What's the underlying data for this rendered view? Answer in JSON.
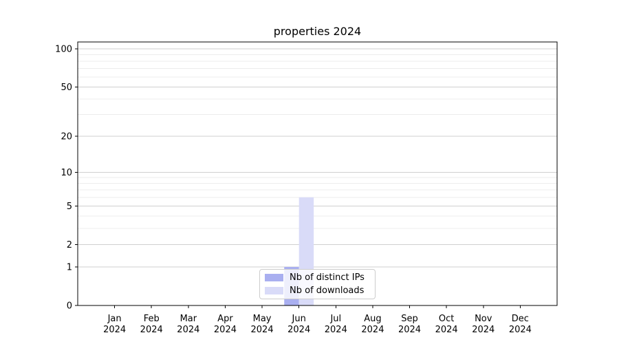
{
  "chart_data": {
    "type": "bar",
    "title": "properties 2024",
    "categories": [
      "Jan",
      "Feb",
      "Mar",
      "Apr",
      "May",
      "Jun",
      "Jul",
      "Aug",
      "Sep",
      "Oct",
      "Nov",
      "Dec"
    ],
    "category_year": "2024",
    "series": [
      {
        "name": "Nb of distinct IPs",
        "color": "#a9aff0",
        "values": [
          0,
          0,
          0,
          0,
          0,
          1,
          0,
          0,
          0,
          0,
          0,
          0
        ]
      },
      {
        "name": "Nb of downloads",
        "color": "#d9dbf8",
        "values": [
          0,
          0,
          0,
          0,
          0,
          6,
          0,
          0,
          0,
          0,
          0,
          0
        ]
      }
    ],
    "y_axis": {
      "scale": "log10(1+y)",
      "major_ticks": [
        0,
        1,
        2,
        5,
        10,
        20,
        50,
        100
      ],
      "minor_gridlines": [
        3,
        4,
        6,
        7,
        8,
        9,
        30,
        40,
        60,
        70,
        80,
        90
      ],
      "ylim": [
        0,
        115
      ]
    },
    "xlabel": "",
    "ylabel": "",
    "legend_position": "lower center",
    "grid": {
      "major_color": "#cfcfcf",
      "minor_color": "#ececec",
      "enabled": true
    },
    "colors": {
      "spine": "#000000",
      "tick": "#000000",
      "text": "#000000",
      "background": "#ffffff",
      "legend_border": "#cccccc"
    }
  }
}
